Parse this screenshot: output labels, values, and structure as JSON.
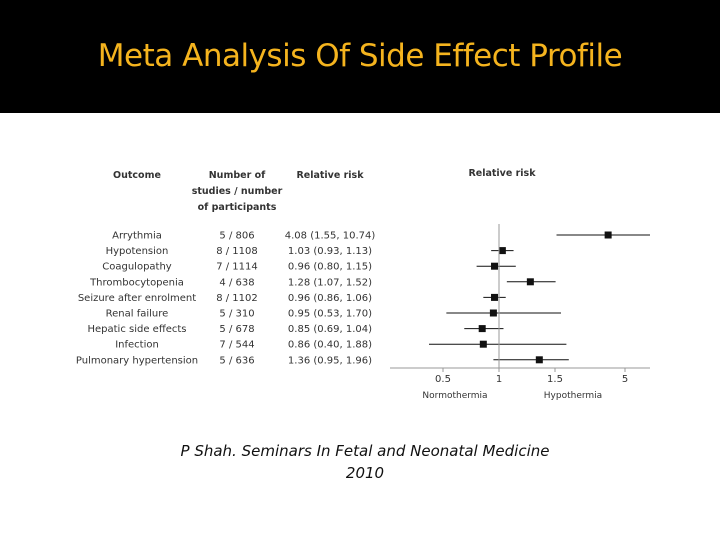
{
  "slide": {
    "title": "Meta Analysis Of Side Effect Profile",
    "citation_line1": "P Shah. Seminars In Fetal and Neonatal Medicine",
    "citation_line2": "2010"
  },
  "colors": {
    "title": "#F5B41E",
    "background": "#000000",
    "panel": "#FFFFFF",
    "marker": "#111111"
  },
  "chart_data": {
    "type": "forest",
    "headers": {
      "outcome": "Outcome",
      "studies_line1": "Number of",
      "studies_line2": "studies / number",
      "studies_line3": "of participants",
      "rr": "Relative risk",
      "plot": "Relative risk"
    },
    "x_ticks": [
      "0.5",
      "1",
      "1.5",
      "5"
    ],
    "x_scale": "log",
    "direction_labels": {
      "left": "Normothermia",
      "right": "Hypothermia"
    },
    "rows": [
      {
        "outcome": "Arrythmia",
        "studies": "5 / 806",
        "rr_text": "4.08 (1.55, 10.74)",
        "rr": 4.08,
        "lo": 1.55,
        "hi": 10.74
      },
      {
        "outcome": "Hypotension",
        "studies": "8 / 1108",
        "rr_text": "1.03 (0.93, 1.13)",
        "rr": 1.03,
        "lo": 0.93,
        "hi": 1.13
      },
      {
        "outcome": "Coagulopathy",
        "studies": "7 / 1114",
        "rr_text": "0.96 (0.80, 1.15)",
        "rr": 0.96,
        "lo": 0.8,
        "hi": 1.15
      },
      {
        "outcome": "Thrombocytopenia",
        "studies": "4 / 638",
        "rr_text": "1.28 (1.07, 1.52)",
        "rr": 1.28,
        "lo": 1.07,
        "hi": 1.52
      },
      {
        "outcome": "Seizure after enrolment",
        "studies": "8 / 1102",
        "rr_text": "0.96 (0.86, 1.06)",
        "rr": 0.96,
        "lo": 0.86,
        "hi": 1.06
      },
      {
        "outcome": "Renal failure",
        "studies": "5 / 310",
        "rr_text": "0.95 (0.53, 1.70)",
        "rr": 0.95,
        "lo": 0.53,
        "hi": 1.7
      },
      {
        "outcome": "Hepatic side effects",
        "studies": "5 / 678",
        "rr_text": "0.85 (0.69, 1.04)",
        "rr": 0.85,
        "lo": 0.69,
        "hi": 1.04
      },
      {
        "outcome": "Infection",
        "studies": "7 / 544",
        "rr_text": "0.86 (0.40, 1.88)",
        "rr": 0.86,
        "lo": 0.4,
        "hi": 1.88
      },
      {
        "outcome": "Pulmonary hypertension",
        "studies": "5 / 636",
        "rr_text": "1.36 (0.95, 1.96)",
        "rr": 1.36,
        "lo": 0.95,
        "hi": 1.96
      }
    ]
  }
}
